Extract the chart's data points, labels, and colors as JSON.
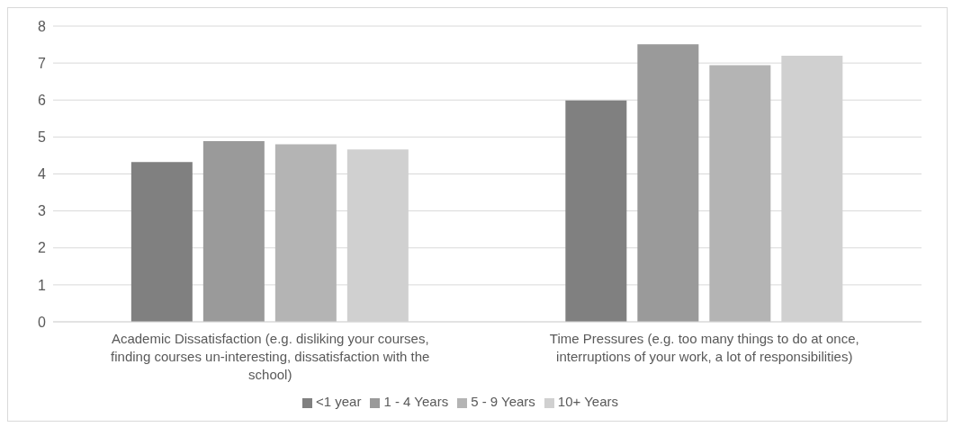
{
  "chart_data": {
    "type": "bar",
    "categories": [
      "Academic Dissatisfaction (e.g. disliking your courses, finding courses un-interesting, dissatisfaction with the school)",
      "Time Pressures (e.g. too many things to do at once, interruptions of your work, a lot of responsibilities)"
    ],
    "series": [
      {
        "name": "<1 year",
        "color": "#808080",
        "values": [
          4.32,
          5.99
        ]
      },
      {
        "name": "1 - 4 Years",
        "color": "#9a9a9a",
        "values": [
          4.89,
          7.51
        ]
      },
      {
        "name": "5 - 9 Years",
        "color": "#b4b4b4",
        "values": [
          4.8,
          6.94
        ]
      },
      {
        "name": "10+ Years",
        "color": "#d0d0d0",
        "values": [
          4.66,
          7.2
        ]
      }
    ],
    "ylim": [
      0,
      8
    ],
    "yticks": [
      0,
      1,
      2,
      3,
      4,
      5,
      6,
      7,
      8
    ],
    "grid": "y",
    "legend": "bottom"
  }
}
